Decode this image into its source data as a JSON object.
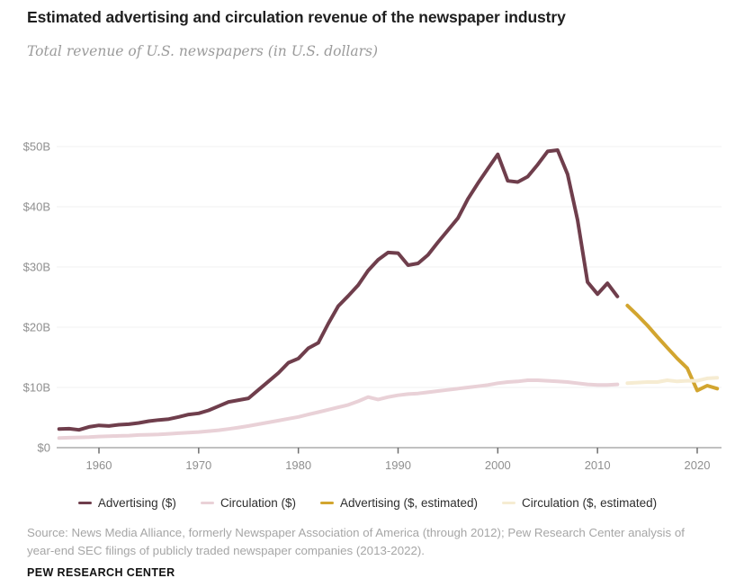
{
  "header": {
    "title": "Estimated advertising and circulation revenue of the newspaper industry",
    "subtitle": "Total revenue of U.S. newspapers (in U.S. dollars)"
  },
  "chart_data": {
    "type": "line",
    "title": "Estimated advertising and circulation revenue of the newspaper industry",
    "subtitle": "Total revenue of U.S. newspapers (in U.S. dollars)",
    "unit": "billions of U.S. dollars",
    "x_range": [
      1956,
      2022
    ],
    "ylim": [
      0,
      52
    ],
    "grid": true,
    "legend_position": "bottom",
    "y_ticks": [
      {
        "label": "$50B",
        "value": 50
      },
      {
        "label": "$40B",
        "value": 40
      },
      {
        "label": "$30B",
        "value": 30
      },
      {
        "label": "$20B",
        "value": 20
      },
      {
        "label": "$10B",
        "value": 10
      },
      {
        "label": "$0",
        "value": 0
      }
    ],
    "x_ticks": [
      {
        "label": "1960",
        "value": 1960
      },
      {
        "label": "1970",
        "value": 1970
      },
      {
        "label": "1980",
        "value": 1980
      },
      {
        "label": "1990",
        "value": 1990
      },
      {
        "label": "2000",
        "value": 2000
      },
      {
        "label": "2010",
        "value": 2010
      },
      {
        "label": "2020",
        "value": 2020
      }
    ],
    "series": [
      {
        "name": "Advertising ($)",
        "color": "#6f3e4c",
        "start_year": 1956,
        "values": [
          3.1,
          3.15,
          2.95,
          3.45,
          3.7,
          3.6,
          3.8,
          3.9,
          4.1,
          4.4,
          4.6,
          4.75,
          5.1,
          5.5,
          5.7,
          6.2,
          6.9,
          7.6,
          7.9,
          8.2,
          9.6,
          11.0,
          12.4,
          14.1,
          14.8,
          16.5,
          17.4,
          20.6,
          23.5,
          25.2,
          27.0,
          29.4,
          31.2,
          32.4,
          32.3,
          30.3,
          30.6,
          32.0,
          34.1,
          36.1,
          38.1,
          41.3,
          43.9,
          46.3,
          48.7,
          44.3,
          44.1,
          45.0,
          47.0,
          49.2,
          49.4,
          45.4,
          37.8,
          27.5,
          25.5,
          27.3,
          25.1
        ]
      },
      {
        "name": "Circulation ($)",
        "color": "#e9d1d7",
        "start_year": 1956,
        "values": [
          1.6,
          1.65,
          1.7,
          1.75,
          1.85,
          1.9,
          1.95,
          2.0,
          2.1,
          2.15,
          2.2,
          2.3,
          2.4,
          2.5,
          2.6,
          2.75,
          2.9,
          3.1,
          3.35,
          3.6,
          3.9,
          4.2,
          4.5,
          4.8,
          5.1,
          5.5,
          5.9,
          6.3,
          6.7,
          7.1,
          7.7,
          8.4,
          8.0,
          8.4,
          8.7,
          8.9,
          9.0,
          9.2,
          9.4,
          9.6,
          9.8,
          10.0,
          10.2,
          10.4,
          10.7,
          10.9,
          11.0,
          11.2,
          11.2,
          11.1,
          11.0,
          10.9,
          10.7,
          10.5,
          10.4,
          10.4,
          10.5
        ]
      },
      {
        "name": "Advertising ($, estimated)",
        "color": "#d2a52f",
        "start_year": 2013,
        "values": [
          23.6,
          22.0,
          20.3,
          18.4,
          16.6,
          14.8,
          13.2,
          9.5,
          10.3,
          9.8
        ]
      },
      {
        "name": "Circulation ($, estimated)",
        "color": "#f6ecd2",
        "start_year": 2013,
        "values": [
          10.7,
          10.8,
          10.9,
          10.9,
          11.2,
          11.0,
          11.1,
          11.1,
          11.5,
          11.6
        ]
      }
    ]
  },
  "source": {
    "text": "Source: News Media Alliance, formerly Newspaper Association of America (through 2012); Pew Research Center analysis of year-end SEC filings of publicly traded newspaper companies (2013-2022)."
  },
  "footer": {
    "brand": "PEW RESEARCH CENTER"
  }
}
